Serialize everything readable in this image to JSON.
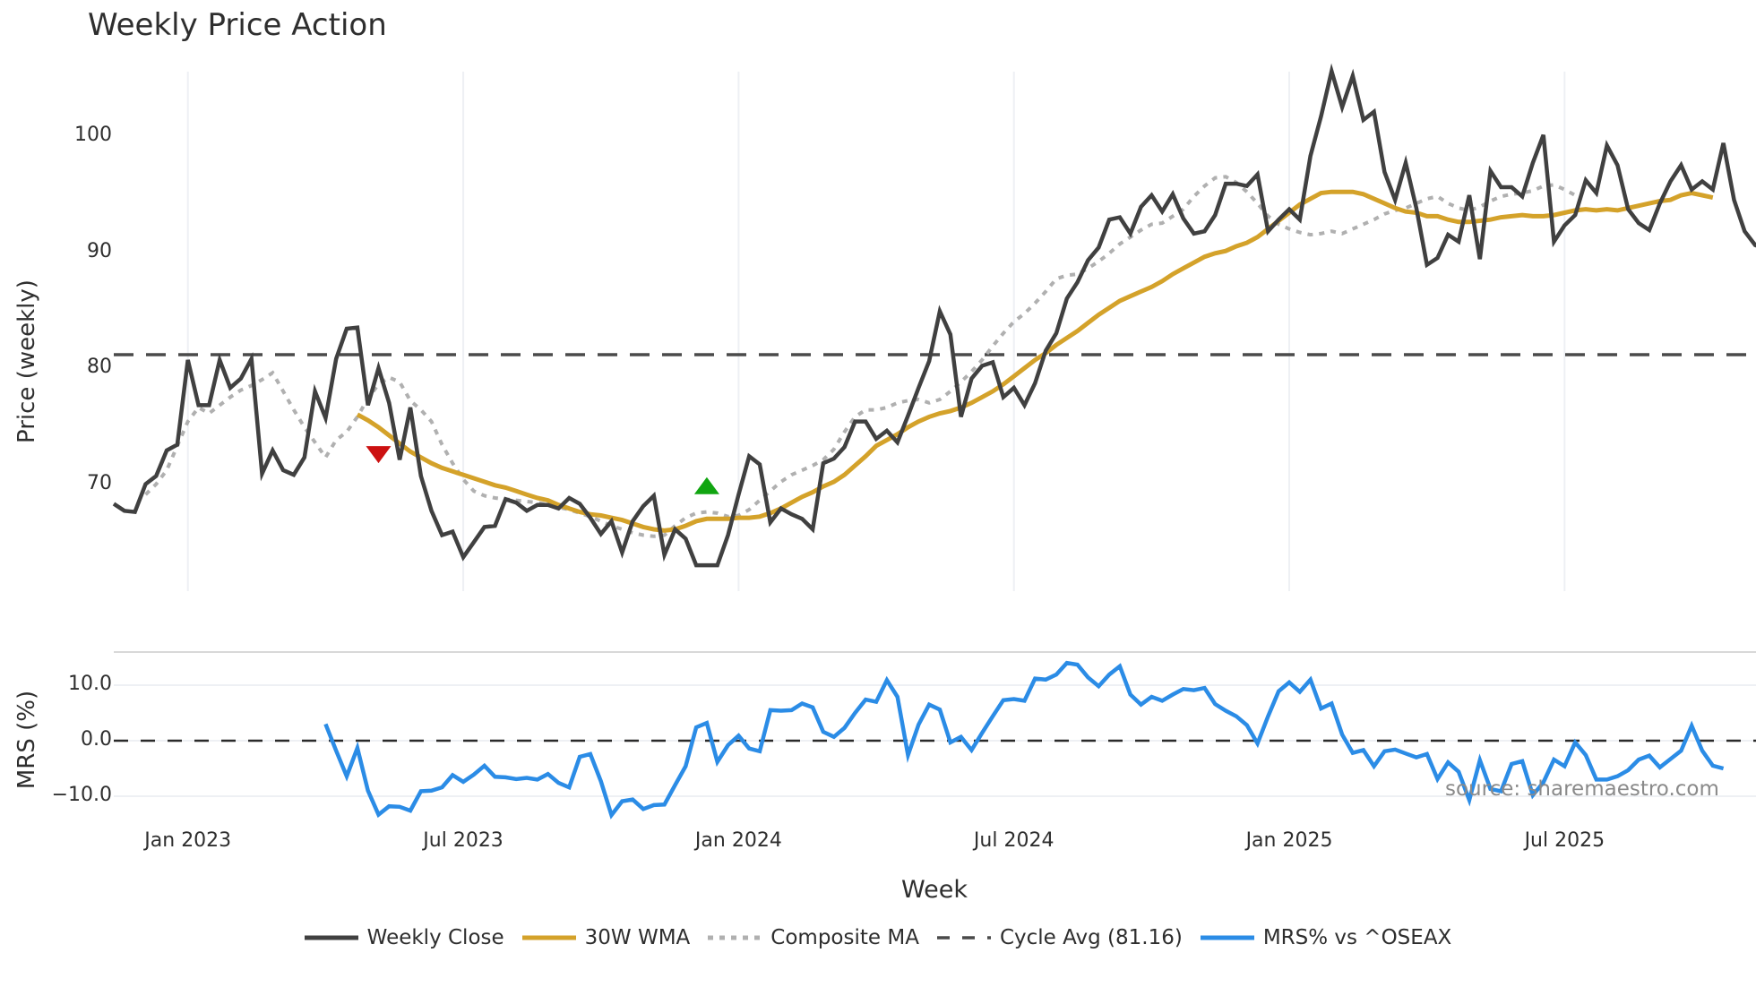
{
  "title": "Weekly Price Action",
  "source": "source: sharemaestro.com",
  "colors": {
    "weekly_close": "#404040",
    "wma30": "#d4a22a",
    "composite_ma": "#b0b0b0",
    "cycle_avg": "#4a4a4a",
    "mrs": "#2b8ce6",
    "sell_marker": "#cc1111",
    "buy_marker": "#11a511",
    "grid": "#eef0f4"
  },
  "chart_data": [
    {
      "type": "line",
      "title": "Weekly Price Action",
      "xlabel": "",
      "ylabel": "Price (weekly)",
      "ylim": [
        60.8,
        105.6
      ],
      "yticks": [
        70,
        80,
        90,
        100
      ],
      "xticks": [
        "Jan 2023",
        "Jul 2023",
        "Jan 2024",
        "Jul 2024",
        "Jan 2025",
        "Jul 2025"
      ],
      "grid": "vertical",
      "x_start": "2022-11-05",
      "x_step": "1 week",
      "series": [
        {
          "name": "Weekly Close",
          "start_index": 0,
          "values": [
            68.3,
            67.7,
            67.6,
            70.0,
            70.7,
            72.9,
            73.4,
            80.7,
            76.8,
            76.8,
            80.7,
            78.3,
            79.1,
            80.8,
            70.9,
            72.9,
            71.2,
            70.8,
            72.3,
            78.0,
            75.7,
            80.8,
            83.4,
            83.5,
            76.8,
            80.0,
            77.0,
            72.1,
            76.6,
            70.7,
            67.7,
            65.6,
            65.9,
            63.7,
            65.0,
            66.3,
            66.4,
            68.7,
            68.4,
            67.7,
            68.2,
            68.2,
            67.9,
            68.8,
            68.3,
            67.1,
            65.7,
            66.8,
            64.1,
            66.8,
            68.1,
            69.0,
            63.9,
            66.1,
            65.3,
            63.0,
            63.0,
            63.0,
            65.6,
            69.1,
            72.4,
            71.7,
            66.7,
            67.9,
            67.4,
            67.0,
            66.1,
            71.8,
            72.2,
            73.2,
            75.4,
            75.4,
            73.9,
            74.6,
            73.6,
            75.9,
            78.3,
            80.6,
            84.9,
            82.9,
            75.8,
            79.1,
            80.2,
            80.5,
            77.5,
            78.3,
            76.8,
            78.7,
            81.5,
            83.0,
            86.0,
            87.4,
            89.3,
            90.4,
            92.8,
            93.0,
            91.6,
            93.9,
            94.9,
            93.5,
            95.0,
            92.9,
            91.6,
            91.8,
            93.2,
            95.9,
            95.9,
            95.7,
            96.7,
            91.8,
            92.8,
            93.7,
            92.8,
            98.3,
            101.7,
            105.6,
            102.5,
            105.2,
            101.4,
            102.1,
            96.9,
            94.5,
            97.7,
            93.8,
            88.9,
            89.5,
            91.5,
            90.9,
            94.9,
            89.4,
            97.0,
            95.6,
            95.6,
            94.8,
            97.7,
            100.1,
            90.9,
            92.3,
            93.2,
            96.2,
            95.1,
            99.2,
            97.5,
            93.7,
            92.5,
            91.9,
            94.2,
            96.1,
            97.5,
            95.4,
            96.1,
            95.4,
            99.4,
            94.5,
            91.8,
            90.6,
            90.3
          ]
        },
        {
          "name": "30W WMA",
          "start_index": 23,
          "values": [
            76.0,
            75.5,
            74.9,
            74.2,
            73.5,
            72.8,
            72.3,
            71.8,
            71.4,
            71.1,
            70.8,
            70.5,
            70.2,
            69.9,
            69.7,
            69.4,
            69.1,
            68.8,
            68.6,
            68.2,
            67.9,
            67.6,
            67.4,
            67.3,
            67.1,
            66.9,
            66.6,
            66.3,
            66.1,
            66.0,
            66.1,
            66.4,
            66.8,
            67.0,
            67.0,
            67.0,
            67.1,
            67.1,
            67.2,
            67.5,
            67.9,
            68.4,
            68.9,
            69.3,
            69.8,
            70.2,
            70.8,
            71.6,
            72.4,
            73.3,
            73.8,
            74.3,
            74.9,
            75.4,
            75.8,
            76.1,
            76.3,
            76.6,
            77.0,
            77.5,
            78.0,
            78.6,
            79.3,
            80.0,
            80.7,
            81.3,
            82.0,
            82.6,
            83.2,
            83.9,
            84.6,
            85.2,
            85.8,
            86.2,
            86.6,
            87.0,
            87.5,
            88.1,
            88.6,
            89.1,
            89.6,
            89.9,
            90.1,
            90.5,
            90.8,
            91.3,
            92.0,
            92.7,
            93.4,
            94.1,
            94.6,
            95.1,
            95.2,
            95.2,
            95.2,
            95.0,
            94.6,
            94.2,
            93.8,
            93.5,
            93.4,
            93.1,
            93.1,
            92.8,
            92.6,
            92.6,
            92.7,
            92.8,
            93.0,
            93.1,
            93.2,
            93.1,
            93.1,
            93.2,
            93.4,
            93.6,
            93.7,
            93.6,
            93.7,
            93.6,
            93.8,
            94.0,
            94.2,
            94.4,
            94.5,
            94.9,
            95.1,
            94.9,
            94.7
          ]
        },
        {
          "name": "Composite MA",
          "start_index": 3,
          "values": [
            69.1,
            70.0,
            71.2,
            73.3,
            75.4,
            76.6,
            76.1,
            76.8,
            77.5,
            78.1,
            78.5,
            79.0,
            79.6,
            78.0,
            76.4,
            74.9,
            73.6,
            72.3,
            73.8,
            74.5,
            75.8,
            77.4,
            78.6,
            79.2,
            78.8,
            77.2,
            76.4,
            75.4,
            73.4,
            71.8,
            70.4,
            69.4,
            69.0,
            68.8,
            68.7,
            68.6,
            68.5,
            68.4,
            68.2,
            68.0,
            67.8,
            67.5,
            67.2,
            66.8,
            66.4,
            66.1,
            65.8,
            65.6,
            65.5,
            65.6,
            66.4,
            67.1,
            67.5,
            67.6,
            67.5,
            67.2,
            67.3,
            67.8,
            68.6,
            69.4,
            70.2,
            70.8,
            71.2,
            71.6,
            72.1,
            73.0,
            74.5,
            75.8,
            76.4,
            76.4,
            76.6,
            77.0,
            77.2,
            77.3,
            77.0,
            77.3,
            78.0,
            78.8,
            79.7,
            80.7,
            81.9,
            83.0,
            84.0,
            84.7,
            85.6,
            86.6,
            87.7,
            88.0,
            88.1,
            88.6,
            89.2,
            89.9,
            90.7,
            91.3,
            91.9,
            92.4,
            92.5,
            93.1,
            93.7,
            94.8,
            95.7,
            96.4,
            96.5,
            96.0,
            95.2,
            94.2,
            93.1,
            92.4,
            92.0,
            91.7,
            91.5,
            91.6,
            91.8,
            91.6,
            92.0,
            92.4,
            92.8,
            93.3,
            93.6,
            93.8,
            94.2,
            94.6,
            94.8,
            94.2,
            93.8,
            93.6,
            93.9,
            94.4,
            94.8,
            95.0,
            95.1,
            95.3,
            95.7,
            95.8,
            95.4,
            94.9
          ]
        },
        {
          "name": "Cycle Avg (81.16)",
          "constant": 81.16
        }
      ],
      "markers": [
        {
          "type": "sell",
          "shape": "triangle-down",
          "index": 25,
          "value": 72.5
        },
        {
          "type": "buy",
          "shape": "triangle-up",
          "index": 56,
          "value": 69.9
        }
      ],
      "legend_position": "bottom-center"
    },
    {
      "type": "line",
      "title": "",
      "xlabel": "Week",
      "ylabel": "MRS (%)",
      "ylim": [
        -15,
        15
      ],
      "yticks": [
        -10.0,
        0.0,
        10.0
      ],
      "reference_line": 0.0,
      "series": [
        {
          "name": "MRS% vs ^OSEAX",
          "start_index": 20,
          "values": [
            3.0,
            -1.8,
            -6.4,
            -1.3,
            -9.0,
            -13.3,
            -11.8,
            -11.9,
            -12.6,
            -9.1,
            -9.0,
            -8.4,
            -6.2,
            -7.4,
            -6.1,
            -4.5,
            -6.5,
            -6.6,
            -6.9,
            -6.7,
            -7.0,
            -6.0,
            -7.6,
            -8.4,
            -2.9,
            -2.4,
            -7.3,
            -13.4,
            -10.9,
            -10.6,
            -12.3,
            -11.6,
            -11.5,
            -8.0,
            -4.6,
            2.4,
            3.2,
            -3.8,
            -0.8,
            0.9,
            -1.4,
            -1.9,
            5.5,
            5.4,
            5.5,
            6.7,
            6.0,
            1.6,
            0.7,
            2.3,
            5.0,
            7.4,
            7.0,
            10.9,
            7.9,
            -2.6,
            2.9,
            6.5,
            5.6,
            -0.3,
            0.7,
            -1.7,
            1.4,
            4.4,
            7.3,
            7.5,
            7.2,
            11.2,
            11.0,
            11.9,
            14.0,
            13.7,
            11.4,
            9.8,
            11.9,
            13.4,
            8.3,
            6.5,
            7.9,
            7.2,
            8.3,
            9.3,
            9.1,
            9.5,
            6.6,
            5.4,
            4.4,
            2.8,
            -0.5,
            4.4,
            8.9,
            10.5,
            8.8,
            11.0,
            5.8,
            6.7,
            1.1,
            -2.2,
            -1.7,
            -4.6,
            -1.9,
            -1.6,
            -2.3,
            -3.0,
            -2.4,
            -6.9,
            -3.9,
            -5.6,
            -10.7,
            -3.5,
            -8.7,
            -9.1,
            -4.2,
            -3.7,
            -9.8,
            -7.5,
            -3.4,
            -4.6,
            -0.3,
            -2.6,
            -7.0,
            -7.0,
            -6.4,
            -5.3,
            -3.4,
            -2.7,
            -4.8,
            -3.3,
            -1.8,
            2.7,
            -1.8,
            -4.5,
            -5.0
          ]
        }
      ]
    }
  ],
  "axes": {
    "price": {
      "label": "Price (weekly)",
      "ticks": [
        {
          "label": "100",
          "value": 100
        },
        {
          "label": "90",
          "value": 90
        },
        {
          "label": "80",
          "value": 80
        },
        {
          "label": "70",
          "value": 70
        }
      ]
    },
    "mrs": {
      "label": "MRS (%)",
      "ticks": [
        {
          "label": "10.0",
          "value": 10
        },
        {
          "label": "0.0",
          "value": 0
        },
        {
          "label": "−10.0",
          "value": -10
        }
      ]
    },
    "x": {
      "label": "Week",
      "ticks": [
        {
          "label": "Jan 2023",
          "index": 7
        },
        {
          "label": "Jul 2023",
          "index": 33
        },
        {
          "label": "Jan 2024",
          "index": 59
        },
        {
          "label": "Jul 2024",
          "index": 85
        },
        {
          "label": "Jan 2025",
          "index": 111
        },
        {
          "label": "Jul 2025",
          "index": 137
        }
      ]
    }
  },
  "legend": [
    {
      "label": "Weekly Close",
      "style": "solid",
      "color_key": "weekly_close"
    },
    {
      "label": "30W WMA",
      "style": "solid",
      "color_key": "wma30"
    },
    {
      "label": "Composite MA",
      "style": "dotted",
      "color_key": "composite_ma"
    },
    {
      "label": "Cycle Avg (81.16)",
      "style": "dashed",
      "color_key": "cycle_avg"
    },
    {
      "label": "MRS% vs ^OSEAX",
      "style": "solid",
      "color_key": "mrs"
    }
  ]
}
